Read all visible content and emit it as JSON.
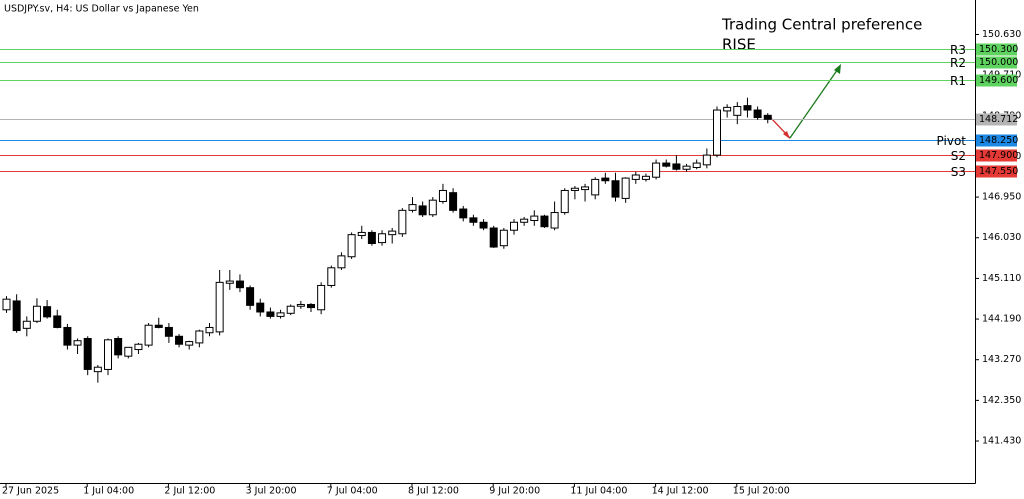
{
  "chart_data": {
    "type": "candlestick",
    "title": "USDJPY.sv, H4:  US Dollar vs Japanese Yen",
    "annotation": {
      "title": "Trading Central preference",
      "direction": "RISE",
      "color": "#5fd35f"
    },
    "categories": [
      "27 Jun 2025",
      null,
      null,
      null,
      null,
      null,
      null,
      null,
      "1 Jul 04:00",
      null,
      null,
      null,
      null,
      null,
      null,
      null,
      "2 Jul 12:00",
      null,
      null,
      null,
      null,
      null,
      null,
      null,
      "3 Jul 20:00",
      null,
      null,
      null,
      null,
      null,
      null,
      null,
      "7 Jul 04:00",
      null,
      null,
      null,
      null,
      null,
      null,
      null,
      "8 Jul 12:00",
      null,
      null,
      null,
      null,
      null,
      null,
      null,
      "9 Jul 20:00",
      null,
      null,
      null,
      null,
      null,
      null,
      null,
      "11 Jul 04:00",
      null,
      null,
      null,
      null,
      null,
      null,
      null,
      "14 Jul 12:00",
      null,
      null,
      null,
      null,
      null,
      null,
      null,
      "15 Jul 20:00",
      null,
      null,
      null
    ],
    "open": [
      144.4,
      144.6,
      143.98,
      144.14,
      144.47,
      144.26,
      144.0,
      143.6,
      143.75,
      143.0,
      143.05,
      143.75,
      143.35,
      143.5,
      143.6,
      144.05,
      144.0,
      143.8,
      143.6,
      143.65,
      143.88,
      143.9,
      145.0,
      145.05,
      144.9,
      144.55,
      144.35,
      144.25,
      144.32,
      144.48,
      144.52,
      144.4,
      144.95,
      145.35,
      145.6,
      146.08,
      146.15,
      145.92,
      146.1,
      146.12,
      146.65,
      146.75,
      146.55,
      146.85,
      147.05,
      146.68,
      146.48,
      146.38,
      146.25,
      145.85,
      146.2,
      146.38,
      146.42,
      146.52,
      146.25,
      146.6,
      147.1,
      147.12,
      147.0,
      147.38,
      147.32,
      146.92,
      147.35,
      147.35,
      147.4,
      147.72,
      147.7,
      147.58,
      147.62,
      147.68,
      147.9,
      148.9,
      148.8,
      149.02,
      148.92,
      148.8
    ],
    "high": [
      144.71,
      144.75,
      144.25,
      144.66,
      144.62,
      144.4,
      144.08,
      143.75,
      143.8,
      143.15,
      143.75,
      143.8,
      143.55,
      143.65,
      144.1,
      144.22,
      144.1,
      143.85,
      143.7,
      143.95,
      144.1,
      145.3,
      145.3,
      145.2,
      144.95,
      144.65,
      144.45,
      144.4,
      144.52,
      144.6,
      144.55,
      145.02,
      145.4,
      145.7,
      146.15,
      146.3,
      146.2,
      146.2,
      146.25,
      146.7,
      146.95,
      146.85,
      146.95,
      147.25,
      147.15,
      146.75,
      146.55,
      146.45,
      146.3,
      146.25,
      146.45,
      146.5,
      146.65,
      146.55,
      146.85,
      147.15,
      147.2,
      147.25,
      147.4,
      147.5,
      147.5,
      147.4,
      147.52,
      147.48,
      147.8,
      147.8,
      147.9,
      147.7,
      147.8,
      148.05,
      149.0,
      149.05,
      149.1,
      149.2,
      149.0,
      148.85
    ],
    "low": [
      144.33,
      143.88,
      143.8,
      144.1,
      144.2,
      143.98,
      143.5,
      143.4,
      142.92,
      142.75,
      142.92,
      143.3,
      143.3,
      143.4,
      143.55,
      143.98,
      143.65,
      143.55,
      143.5,
      143.55,
      143.8,
      143.82,
      144.85,
      144.8,
      144.4,
      144.25,
      144.2,
      144.2,
      144.28,
      144.42,
      144.35,
      144.3,
      144.9,
      145.3,
      145.55,
      146.0,
      145.85,
      145.85,
      145.9,
      146.05,
      146.6,
      146.5,
      146.5,
      146.8,
      146.6,
      146.4,
      146.3,
      146.2,
      145.8,
      145.78,
      146.1,
      146.3,
      146.3,
      146.25,
      146.2,
      146.55,
      146.9,
      146.85,
      146.9,
      147.25,
      146.85,
      146.82,
      147.25,
      147.3,
      147.35,
      147.62,
      147.55,
      147.52,
      147.58,
      147.6,
      147.85,
      148.75,
      148.6,
      148.75,
      148.7,
      148.62
    ],
    "close": [
      144.64,
      143.93,
      144.14,
      144.48,
      144.24,
      144.0,
      143.6,
      143.7,
      143.05,
      143.1,
      143.72,
      143.38,
      143.55,
      143.62,
      144.05,
      144.0,
      143.8,
      143.62,
      143.68,
      143.92,
      144.0,
      145.02,
      145.05,
      144.9,
      144.5,
      144.35,
      144.25,
      144.33,
      144.48,
      144.52,
      144.45,
      144.95,
      145.35,
      145.62,
      146.1,
      146.15,
      145.9,
      146.12,
      146.18,
      146.65,
      146.78,
      146.55,
      146.88,
      147.1,
      146.65,
      146.48,
      146.38,
      146.25,
      145.82,
      146.2,
      146.38,
      146.45,
      146.52,
      146.28,
      146.6,
      147.1,
      147.15,
      147.18,
      147.35,
      147.32,
      146.95,
      147.38,
      147.45,
      147.42,
      147.72,
      147.65,
      147.58,
      147.65,
      147.72,
      147.9,
      148.92,
      148.98,
      149.0,
      148.92,
      148.75,
      148.71
    ],
    "up_color": "#ffffff",
    "down_color": "#000000",
    "ylim": [
      140.48,
      151.41
    ],
    "yticks": [
      {
        "value": 150.63,
        "label": "150.630"
      },
      {
        "value": 149.71,
        "label": "149.710"
      },
      {
        "value": 148.79,
        "label": "148.790"
      },
      {
        "value": 147.87,
        "label": "147.870"
      },
      {
        "value": 146.95,
        "label": "146.950"
      },
      {
        "value": 146.03,
        "label": "146.030"
      },
      {
        "value": 145.11,
        "label": "145.110"
      },
      {
        "value": 144.19,
        "label": "144.190"
      },
      {
        "value": 143.27,
        "label": "143.270"
      },
      {
        "value": 142.35,
        "label": "142.350"
      },
      {
        "value": 141.43,
        "label": "141.430"
      }
    ],
    "grid": false,
    "levels": [
      {
        "name": "R3",
        "value": 150.3,
        "label": "150.300",
        "color": "#5fd35f"
      },
      {
        "name": "R2",
        "value": 150.0,
        "label": "150.000",
        "color": "#5fd35f"
      },
      {
        "name": "R1",
        "value": 149.6,
        "label": "149.600",
        "color": "#5fd35f"
      },
      {
        "value": 148.712,
        "label": "148.712",
        "color": "#b4b4b4"
      },
      {
        "name": "Pivot",
        "value": 148.25,
        "label": "148.250",
        "color": "#1e88e5"
      },
      {
        "name": "S2",
        "value": 147.9,
        "label": "147.900",
        "color": "#e53935"
      },
      {
        "name": "S3",
        "value": 147.55,
        "label": "147.550",
        "color": "#e53935"
      }
    ]
  }
}
